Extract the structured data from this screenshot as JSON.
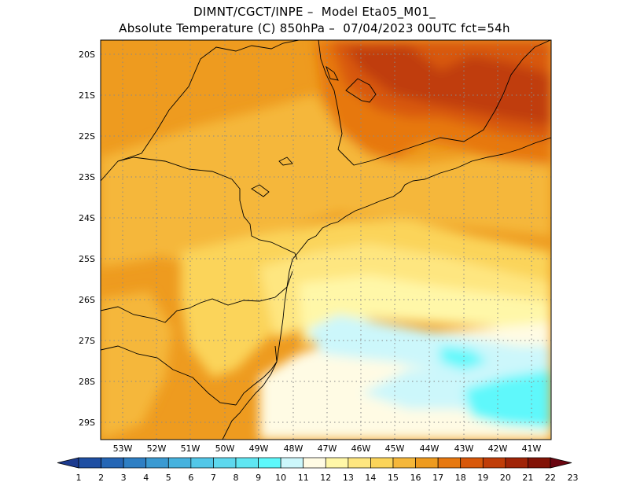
{
  "header": {
    "line1": "DIMNT/CGCT/INPE –  Model Eta05_M01_",
    "line2": "Absolute Temperature (C) 850hPa –  07/04/2023 00UTC fct=54h"
  },
  "map": {
    "lat_labels": [
      "20S",
      "21S",
      "22S",
      "23S",
      "24S",
      "25S",
      "26S",
      "27S",
      "28S",
      "29S"
    ],
    "lon_labels": [
      "53W",
      "52W",
      "51W",
      "50W",
      "49W",
      "48W",
      "47W",
      "46W",
      "45W",
      "44W",
      "43W",
      "42W",
      "41W"
    ],
    "lat_range": [
      -29.4,
      -19.6
    ],
    "lon_range": [
      -53.6,
      -40.6
    ]
  },
  "legend": {
    "labels": [
      "1",
      "2",
      "3",
      "4",
      "5",
      "6",
      "7",
      "8",
      "9",
      "10",
      "11",
      "12",
      "13",
      "14",
      "15",
      "16",
      "17",
      "18",
      "19",
      "20",
      "21",
      "22",
      "23"
    ],
    "colors": [
      "#1c3b8f",
      "#1f4fa3",
      "#2566b5",
      "#2e7fc4",
      "#3a9ad2",
      "#46b2de",
      "#52c7e8",
      "#5ed8ee",
      "#60e6f2",
      "#5ef8fb",
      "#ccf7fb",
      "#fffbe4",
      "#fff7a8",
      "#fee680",
      "#fbd45a",
      "#f5b73a",
      "#ee9b1f",
      "#e7780f",
      "#d8580a",
      "#c03d08",
      "#a02407",
      "#821306",
      "#6a0510"
    ]
  },
  "colors": {
    "border": "#000000",
    "grid": "#8a8a8a"
  }
}
